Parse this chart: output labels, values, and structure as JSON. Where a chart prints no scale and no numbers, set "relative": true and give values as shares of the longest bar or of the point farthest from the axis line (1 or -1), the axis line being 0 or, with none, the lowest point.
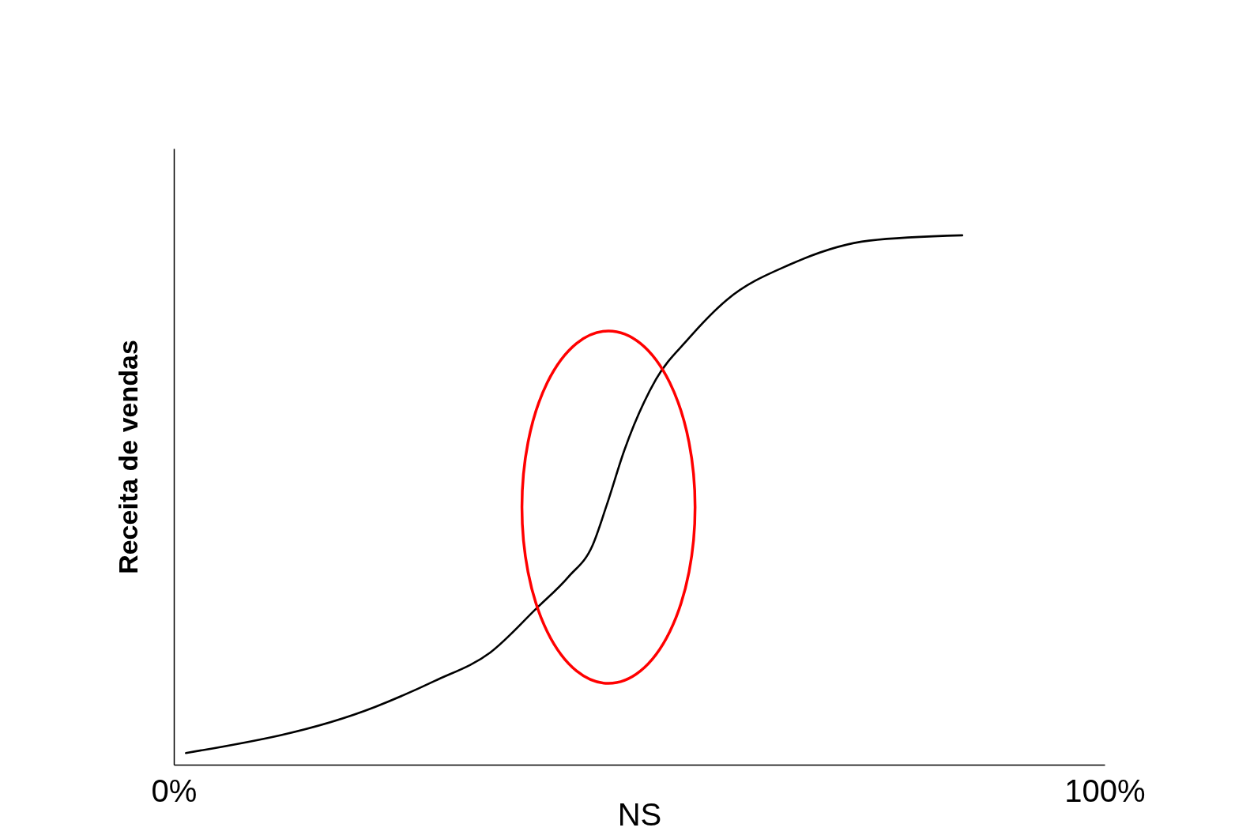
{
  "chart_data": {
    "type": "line",
    "xlabel": "NS",
    "ylabel": "Receita de vendas",
    "relative": true,
    "tick_labels": "x",
    "x": [
      1.3,
      21.6,
      28.0,
      34.0,
      39.0,
      42.4,
      45.0,
      46.5,
      48.4,
      51.8,
      55.2,
      59.4,
      66.2,
      74.7,
      84.7
    ],
    "xlim": [
      0,
      100
    ],
    "xticks": [
      {
        "value": 0,
        "label": "0%"
      },
      {
        "value": 100,
        "label": "100%"
      }
    ],
    "series": [
      {
        "color": "#000000",
        "values": [
          0.022,
          0.109,
          0.158,
          0.212,
          0.296,
          0.355,
          0.415,
          0.49,
          0.594,
          0.728,
          0.803,
          0.878,
          0.945,
          0.99,
          1.0
        ]
      }
    ],
    "marker": "none",
    "line_style": "solid"
  }
}
